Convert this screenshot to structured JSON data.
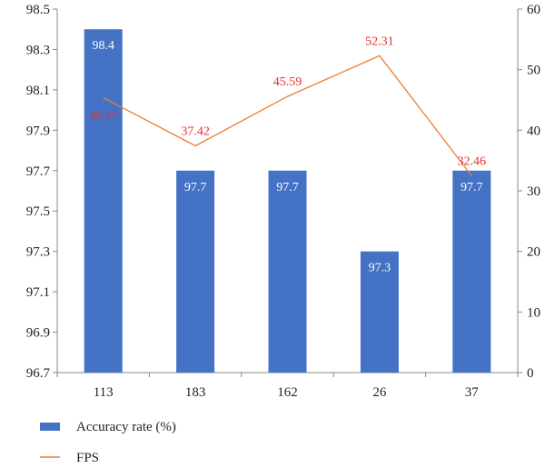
{
  "chart_data": {
    "type": "bar",
    "categories": [
      "113",
      "183",
      "162",
      "26",
      "37"
    ],
    "series": [
      {
        "name": "Accuracy rate (%)",
        "type": "bar",
        "axis": "left",
        "values": [
          98.4,
          97.7,
          97.7,
          97.3,
          97.7
        ],
        "color": "#4472c4"
      },
      {
        "name": "FPS",
        "type": "line",
        "axis": "right",
        "values": [
          45.37,
          37.42,
          45.59,
          52.31,
          32.46
        ],
        "color": "#ed7d31"
      }
    ],
    "y_left": {
      "min": 96.7,
      "max": 98.5,
      "ticks": [
        "96.7",
        "96.9",
        "97.1",
        "97.3",
        "97.5",
        "97.7",
        "97.9",
        "98.1",
        "98.3",
        "98.5"
      ]
    },
    "y_right": {
      "min": 0,
      "max": 60,
      "ticks": [
        "0",
        "10",
        "20",
        "30",
        "40",
        "50",
        "60"
      ]
    },
    "bar_labels": [
      "98.4",
      "97.7",
      "97.7",
      "97.3",
      "97.7"
    ],
    "line_labels": [
      "45.37",
      "37.42",
      "45.59",
      "52.31",
      "32.46"
    ],
    "line_label_color": "#e03030",
    "legend_position": "bottom-left",
    "grid": false,
    "title": "",
    "xlabel": "",
    "ylabel": ""
  }
}
